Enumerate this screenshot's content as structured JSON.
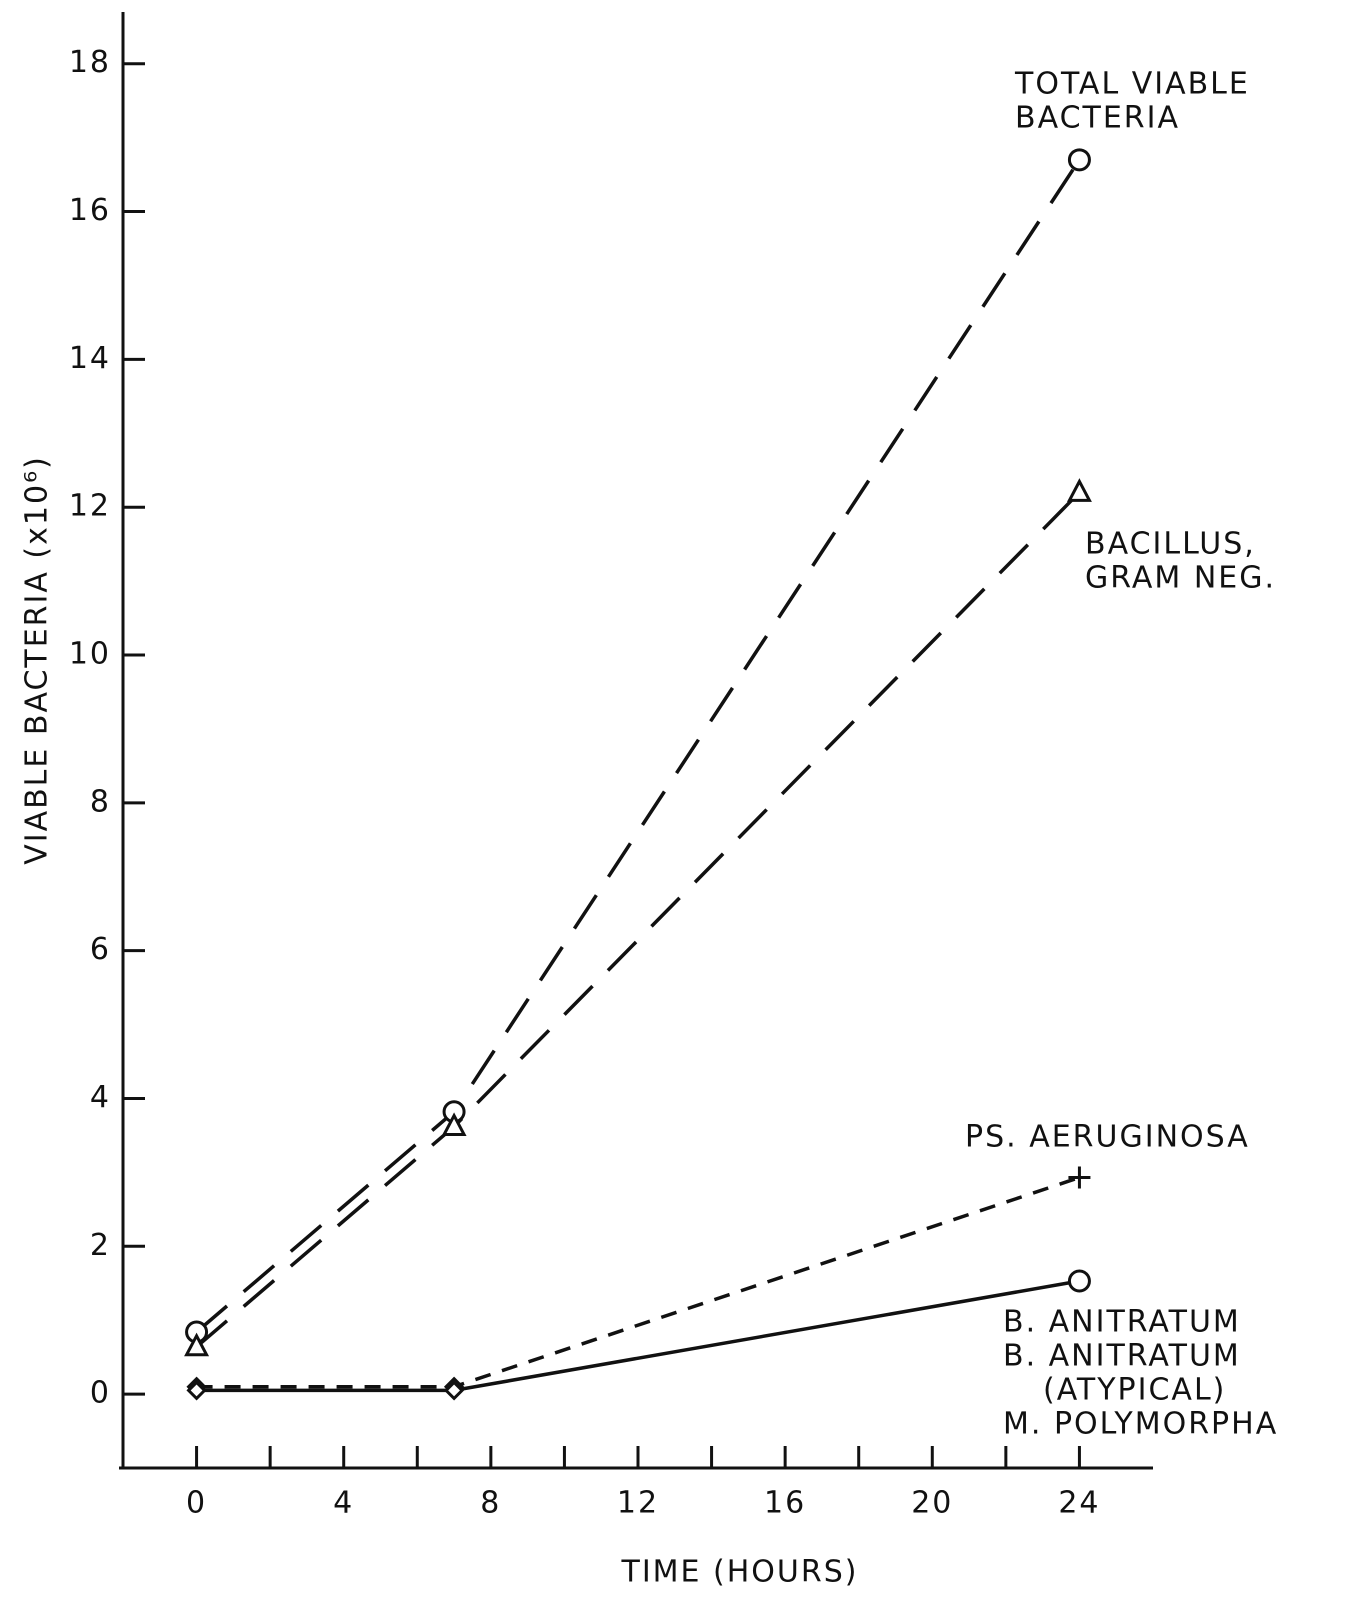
{
  "chart_data": {
    "type": "line",
    "xlabel": "TIME (HOURS)",
    "ylabel": "VIABLE BACTERIA (x10⁶)",
    "xlim": [
      -2,
      26
    ],
    "xticks": [
      0,
      4,
      8,
      12,
      16,
      20,
      24
    ],
    "xminor": [
      2,
      6,
      10,
      14,
      18,
      22
    ],
    "ylim": [
      -1,
      18.7
    ],
    "yticks": [
      0,
      2,
      4,
      6,
      8,
      10,
      12,
      14,
      16,
      18
    ],
    "grid": false,
    "series": [
      {
        "name": [
          "TOTAL VIABLE",
          "BACTERIA"
        ],
        "color": "#111",
        "line_style": "long-dash",
        "markers": [
          "circle",
          "circle",
          "circle"
        ],
        "x": [
          0,
          7,
          24
        ],
        "values": [
          0.84,
          3.82,
          16.7
        ]
      },
      {
        "name": [
          "BACILLUS,",
          "GRAM NEG."
        ],
        "color": "#111",
        "line_style": "long-dash",
        "markers": [
          "triangle",
          "triangle",
          "triangle"
        ],
        "x": [
          0,
          7,
          24
        ],
        "values": [
          0.64,
          3.62,
          12.2
        ]
      },
      {
        "name": [
          "PS. AERUGINOSA"
        ],
        "color": "#111",
        "line_style": "short-dash",
        "markers": [
          "diamond",
          "diamond",
          "plus"
        ],
        "x": [
          0,
          7,
          24
        ],
        "values": [
          0.1,
          0.1,
          2.93
        ]
      },
      {
        "name": [
          "B. ANITRATUM",
          "B. ANITRATUM",
          "(ATYPICAL)",
          "M. POLYMORPHA"
        ],
        "color": "#111",
        "line_style": "solid",
        "markers": [
          "diamond",
          "diamond",
          "circle"
        ],
        "x": [
          0,
          7,
          24
        ],
        "values": [
          0.05,
          0.05,
          1.53
        ]
      }
    ]
  }
}
